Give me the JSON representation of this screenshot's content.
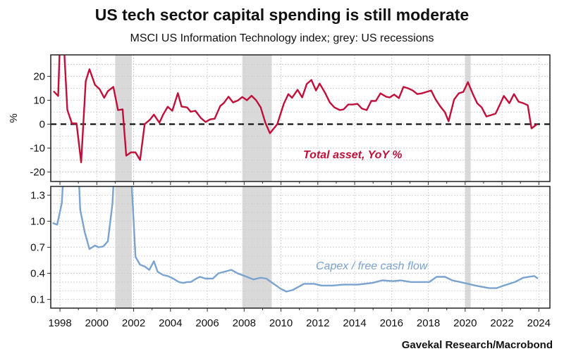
{
  "title": "US tech sector capital spending is still moderate",
  "subtitle": "MSCI US Information Technology index; grey: US recessions",
  "source": "Gavekal Research/Macrobond",
  "colors": {
    "total_asset": "#c0103a",
    "capex": "#7aa3cf",
    "recession": "#d9d9d9"
  },
  "chart_data": [
    {
      "type": "line",
      "ylabel": "%",
      "xlim": [
        1997.5,
        2024.6
      ],
      "ylim": [
        -24,
        29
      ],
      "yticks": [
        -20,
        -10,
        0,
        10,
        20
      ],
      "xticks": [
        1998,
        2000,
        2002,
        2004,
        2006,
        2008,
        2010,
        2012,
        2014,
        2016,
        2018,
        2020,
        2022,
        2024
      ],
      "grid": true,
      "zero_line": "dashed",
      "recessions": [
        [
          2001.0,
          2001.9
        ],
        [
          2007.9,
          2009.5
        ],
        [
          2020.0,
          2020.3
        ]
      ],
      "series": [
        {
          "name": "Total asset, YoY %",
          "x": [
            1997.65,
            1997.9,
            1998.0,
            1998.2,
            1998.4,
            1998.65,
            1998.9,
            1999.15,
            1999.4,
            1999.6,
            1999.9,
            2000.15,
            2000.4,
            2000.6,
            2000.9,
            2001.15,
            2001.4,
            2001.6,
            2001.85,
            2002.1,
            2002.35,
            2002.6,
            2002.9,
            2003.1,
            2003.4,
            2003.6,
            2003.85,
            2004.1,
            2004.4,
            2004.6,
            2004.9,
            2005.1,
            2005.35,
            2005.65,
            2005.9,
            2006.15,
            2006.4,
            2006.7,
            2006.9,
            2007.15,
            2007.4,
            2007.65,
            2007.9,
            2008.15,
            2008.4,
            2008.65,
            2008.9,
            2009.15,
            2009.4,
            2009.8,
            2010.15,
            2010.4,
            2010.6,
            2010.9,
            2011.15,
            2011.4,
            2011.65,
            2011.9,
            2012.1,
            2012.4,
            2012.65,
            2012.9,
            2013.2,
            2013.4,
            2013.65,
            2013.9,
            2014.15,
            2014.4,
            2014.65,
            2014.9,
            2015.15,
            2015.4,
            2015.7,
            2015.9,
            2016.15,
            2016.4,
            2016.65,
            2016.9,
            2017.15,
            2017.4,
            2017.65,
            2017.9,
            2018.15,
            2018.4,
            2018.65,
            2018.9,
            2019.1,
            2019.4,
            2019.65,
            2019.9,
            2020.15,
            2020.4,
            2020.65,
            2020.9,
            2021.15,
            2021.4,
            2021.65,
            2021.9,
            2022.1,
            2022.4,
            2022.65,
            2022.9,
            2023.15,
            2023.4,
            2023.6,
            2023.9
          ],
          "y": [
            13.8,
            11.8,
            35,
            35,
            6,
            0.3,
            0.3,
            -16,
            18,
            23,
            16.5,
            14.7,
            11,
            13.8,
            15.6,
            5.9,
            6.2,
            -13.2,
            -11.8,
            -11.8,
            -15,
            0,
            2,
            4,
            0.6,
            4,
            7.3,
            5.6,
            13,
            7.4,
            7,
            5.2,
            5.6,
            2.6,
            0.9,
            2,
            2.3,
            7.6,
            8.9,
            11.5,
            9.1,
            9.9,
            11.4,
            10,
            11.9,
            10,
            7,
            0.6,
            -3.8,
            0,
            8.5,
            12.6,
            11,
            14.4,
            11.2,
            16.8,
            18.5,
            14.1,
            17,
            13,
            9.1,
            7,
            5.9,
            6.2,
            8.2,
            8.2,
            8.5,
            6.5,
            5.9,
            9.7,
            9.7,
            12.9,
            11.5,
            11.2,
            12.4,
            10.9,
            15.6,
            15,
            14.1,
            12.6,
            12.9,
            13.5,
            14.1,
            10.3,
            7.4,
            5,
            1.2,
            10.3,
            12.9,
            13.5,
            17.6,
            12.9,
            8.8,
            7,
            3.2,
            3.8,
            4.4,
            8.5,
            11.8,
            8.8,
            12.6,
            9.4,
            8.8,
            7.9,
            -1.8,
            0
          ]
        }
      ]
    },
    {
      "type": "line",
      "xlim": [
        1997.5,
        2024.6
      ],
      "ylim": [
        0,
        1.4
      ],
      "yticks": [
        0.1,
        0.4,
        0.7,
        1.0,
        1.3
      ],
      "ytick_labels": [
        "0.1",
        "0.4",
        "0.7",
        "1.0",
        "1.3"
      ],
      "xticks": [
        1998,
        2000,
        2002,
        2004,
        2006,
        2008,
        2010,
        2012,
        2014,
        2016,
        2018,
        2020,
        2022,
        2024
      ],
      "grid": true,
      "recessions": [
        [
          2001.0,
          2001.9
        ],
        [
          2007.9,
          2009.5
        ],
        [
          2020.0,
          2020.3
        ]
      ],
      "series": [
        {
          "name": "Capex / free cash flow",
          "x": [
            1997.6,
            1997.85,
            1998.1,
            1998.2,
            1999.0,
            1999.1,
            1999.35,
            1999.6,
            1999.9,
            2000.1,
            2000.35,
            2000.6,
            2000.85,
            2000.95,
            2001.85,
            2002.1,
            2002.35,
            2002.6,
            2002.85,
            2003.1,
            2003.3,
            2003.6,
            2003.85,
            2004.15,
            2004.45,
            2004.7,
            2004.9,
            2005.1,
            2005.4,
            2005.6,
            2005.9,
            2006.3,
            2006.6,
            2006.95,
            2007.3,
            2007.65,
            2008.15,
            2008.5,
            2008.9,
            2009.2,
            2009.6,
            2010.0,
            2010.3,
            2010.65,
            2011.25,
            2011.8,
            2012.2,
            2012.8,
            2013.4,
            2014.15,
            2014.95,
            2015.5,
            2016.1,
            2016.5,
            2017.05,
            2017.65,
            2018.05,
            2018.45,
            2018.9,
            2019.3,
            2019.95,
            2020.55,
            2021.3,
            2021.7,
            2022.1,
            2022.7,
            2023.15,
            2023.75,
            2023.95
          ],
          "y": [
            0.98,
            0.96,
            1.21,
            1.6,
            1.6,
            1.13,
            0.87,
            0.68,
            0.72,
            0.7,
            0.71,
            0.77,
            1.2,
            1.6,
            1.6,
            0.59,
            0.5,
            0.48,
            0.44,
            0.54,
            0.42,
            0.38,
            0.37,
            0.34,
            0.3,
            0.29,
            0.3,
            0.3,
            0.34,
            0.36,
            0.34,
            0.34,
            0.4,
            0.42,
            0.44,
            0.4,
            0.36,
            0.33,
            0.35,
            0.34,
            0.28,
            0.22,
            0.19,
            0.21,
            0.28,
            0.28,
            0.26,
            0.26,
            0.27,
            0.27,
            0.29,
            0.32,
            0.31,
            0.32,
            0.3,
            0.3,
            0.3,
            0.36,
            0.36,
            0.32,
            0.29,
            0.26,
            0.23,
            0.23,
            0.26,
            0.3,
            0.35,
            0.37,
            0.34
          ]
        }
      ]
    }
  ]
}
